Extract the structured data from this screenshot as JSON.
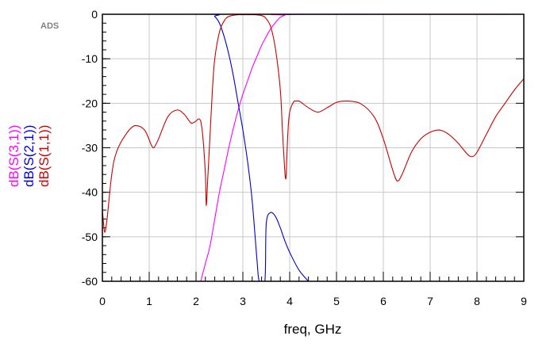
{
  "chart_data": {
    "type": "line",
    "watermark": "ADS",
    "xlabel": "freq, GHz",
    "xlim": [
      0,
      9
    ],
    "ylim": [
      -60,
      0
    ],
    "x_ticks": [
      "0",
      "1",
      "2",
      "3",
      "4",
      "5",
      "6",
      "7",
      "8",
      "9"
    ],
    "y_ticks": [
      "0",
      "-10",
      "-20",
      "-30",
      "-40",
      "-50",
      "-60"
    ],
    "grid": true,
    "legend_placement": "left-vertical",
    "series": [
      {
        "name": "dB(S(3,1))",
        "color": "#ff00ff",
        "points": [
          [
            2.1,
            -60
          ],
          [
            2.2,
            -56
          ],
          [
            2.3,
            -52
          ],
          [
            2.4,
            -46
          ],
          [
            2.5,
            -40
          ],
          [
            2.6,
            -35
          ],
          [
            2.7,
            -30
          ],
          [
            2.8,
            -25.5
          ],
          [
            2.9,
            -21.5
          ],
          [
            3.0,
            -18
          ],
          [
            3.1,
            -15
          ],
          [
            3.2,
            -12
          ],
          [
            3.3,
            -9.5
          ],
          [
            3.4,
            -7
          ],
          [
            3.5,
            -5
          ],
          [
            3.6,
            -3.2
          ],
          [
            3.7,
            -1.8
          ],
          [
            3.8,
            -0.7
          ],
          [
            3.9,
            -0.2
          ],
          [
            4.0,
            -0.05
          ],
          [
            9.0,
            0
          ]
        ]
      },
      {
        "name": "dB(S(2,1))",
        "color": "#0000cc",
        "points": [
          [
            0,
            0
          ],
          [
            2.3,
            0
          ],
          [
            2.4,
            -0.5
          ],
          [
            2.5,
            -2
          ],
          [
            2.6,
            -5
          ],
          [
            2.7,
            -9
          ],
          [
            2.8,
            -14
          ],
          [
            2.9,
            -20
          ],
          [
            3.0,
            -26
          ],
          [
            3.1,
            -33
          ],
          [
            3.2,
            -42
          ],
          [
            3.3,
            -55
          ],
          [
            3.35,
            -60
          ],
          [
            3.47,
            -60
          ],
          [
            3.5,
            -47
          ],
          [
            3.6,
            -44.5
          ],
          [
            3.7,
            -45.5
          ],
          [
            3.8,
            -48
          ],
          [
            3.9,
            -51
          ],
          [
            4.0,
            -53.5
          ],
          [
            4.2,
            -57.5
          ],
          [
            4.4,
            -60
          ]
        ]
      },
      {
        "name": "dB(S(1,1))",
        "color": "#cc0000",
        "points": [
          [
            0,
            -44
          ],
          [
            0.05,
            -49
          ],
          [
            0.1,
            -46
          ],
          [
            0.2,
            -36
          ],
          [
            0.3,
            -31
          ],
          [
            0.5,
            -27
          ],
          [
            0.7,
            -25
          ],
          [
            0.9,
            -26
          ],
          [
            1.05,
            -29.5
          ],
          [
            1.1,
            -30
          ],
          [
            1.2,
            -28
          ],
          [
            1.4,
            -23
          ],
          [
            1.6,
            -21.5
          ],
          [
            1.75,
            -22.5
          ],
          [
            1.9,
            -24.5
          ],
          [
            2.0,
            -24
          ],
          [
            2.05,
            -23.5
          ],
          [
            2.1,
            -24
          ],
          [
            2.15,
            -28
          ],
          [
            2.2,
            -36
          ],
          [
            2.22,
            -43
          ],
          [
            2.25,
            -37
          ],
          [
            2.3,
            -27
          ],
          [
            2.35,
            -17
          ],
          [
            2.4,
            -10
          ],
          [
            2.5,
            -4
          ],
          [
            2.6,
            -1.5
          ],
          [
            2.7,
            -0.5
          ],
          [
            2.9,
            -0.1
          ],
          [
            3.2,
            -0.1
          ],
          [
            3.4,
            -0.3
          ],
          [
            3.5,
            -1
          ],
          [
            3.6,
            -3
          ],
          [
            3.7,
            -8
          ],
          [
            3.8,
            -17
          ],
          [
            3.85,
            -27
          ],
          [
            3.9,
            -36
          ],
          [
            3.92,
            -37
          ],
          [
            3.96,
            -27
          ],
          [
            4.0,
            -22
          ],
          [
            4.1,
            -19.5
          ],
          [
            4.2,
            -19.5
          ],
          [
            4.4,
            -21
          ],
          [
            4.6,
            -22
          ],
          [
            4.8,
            -21
          ],
          [
            5.0,
            -19.8
          ],
          [
            5.2,
            -19.5
          ],
          [
            5.5,
            -20
          ],
          [
            5.8,
            -23
          ],
          [
            6.0,
            -28
          ],
          [
            6.2,
            -35
          ],
          [
            6.3,
            -37.5
          ],
          [
            6.4,
            -36
          ],
          [
            6.6,
            -31
          ],
          [
            6.8,
            -28
          ],
          [
            7.0,
            -26.5
          ],
          [
            7.2,
            -26
          ],
          [
            7.4,
            -27
          ],
          [
            7.6,
            -29
          ],
          [
            7.8,
            -31.5
          ],
          [
            7.9,
            -32
          ],
          [
            8.0,
            -31
          ],
          [
            8.2,
            -27
          ],
          [
            8.4,
            -23
          ],
          [
            8.6,
            -20
          ],
          [
            8.8,
            -17
          ],
          [
            9.0,
            -14.5
          ]
        ]
      }
    ]
  }
}
